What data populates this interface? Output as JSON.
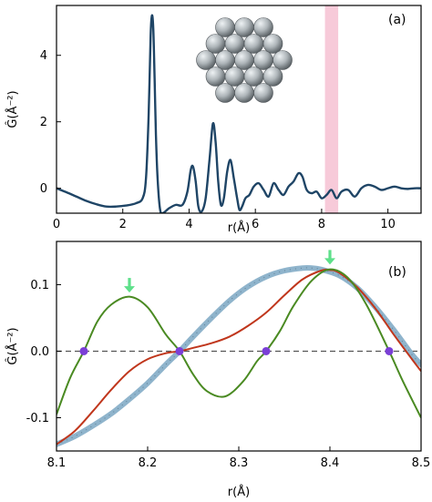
{
  "chart_data": [
    {
      "panel_label": "(a)",
      "type": "line",
      "xlabel": "r(Å)",
      "ylabel": "Ĝ(Å⁻²)",
      "xlim": [
        0,
        11
      ],
      "ylim": [
        -0.75,
        5.5
      ],
      "x_ticks": [
        "0",
        "2",
        "4",
        "6",
        "8",
        "10"
      ],
      "y_ticks": [
        "0",
        "2",
        "4"
      ],
      "highlight_band": {
        "x0": 8.1,
        "x1": 8.5,
        "color": "#f4b8cc"
      },
      "inset": "icosahedral nanoparticle rendering (gray spheres)",
      "series": [
        {
          "color": "#1f4566",
          "x": [
            0,
            0.3,
            0.6,
            0.9,
            1.2,
            1.5,
            1.8,
            2.1,
            2.4,
            2.6,
            2.7,
            2.78,
            2.84,
            2.88,
            2.92,
            2.96,
            3.0,
            3.05,
            3.12,
            3.2,
            3.4,
            3.6,
            3.8,
            3.95,
            4.05,
            4.12,
            4.2,
            4.28,
            4.38,
            4.5,
            4.62,
            4.72,
            4.8,
            4.88,
            4.96,
            5.05,
            5.15,
            5.25,
            5.35,
            5.45,
            5.52,
            5.6,
            5.7,
            5.82,
            5.95,
            6.1,
            6.25,
            6.4,
            6.55,
            6.7,
            6.85,
            7.0,
            7.15,
            7.3,
            7.42,
            7.55,
            7.7,
            7.85,
            8.0,
            8.15,
            8.3,
            8.45,
            8.6,
            8.8,
            9.0,
            9.2,
            9.4,
            9.6,
            9.8,
            10.0,
            10.2,
            10.4,
            10.6,
            10.8,
            11.0
          ],
          "values": [
            0.0,
            -0.12,
            -0.25,
            -0.38,
            -0.48,
            -0.55,
            -0.55,
            -0.52,
            -0.45,
            -0.3,
            0.3,
            2.2,
            4.6,
            5.2,
            4.8,
            3.3,
            1.6,
            0.3,
            -0.6,
            -0.75,
            -0.6,
            -0.5,
            -0.5,
            -0.1,
            0.55,
            0.65,
            0.2,
            -0.55,
            -0.7,
            -0.3,
            0.9,
            1.95,
            1.4,
            0.2,
            -0.5,
            -0.3,
            0.5,
            0.85,
            0.3,
            -0.3,
            -0.65,
            -0.55,
            -0.3,
            -0.2,
            0.05,
            0.15,
            -0.05,
            -0.25,
            0.15,
            -0.05,
            -0.2,
            0.05,
            0.2,
            0.45,
            0.35,
            -0.05,
            -0.15,
            -0.1,
            -0.3,
            -0.2,
            -0.05,
            -0.3,
            -0.1,
            -0.05,
            -0.25,
            0.0,
            0.1,
            0.05,
            -0.05,
            0.0,
            0.05,
            0.0,
            -0.02,
            0.0,
            0.0
          ]
        }
      ]
    },
    {
      "panel_label": "(b)",
      "type": "line",
      "xlabel": "r(Å)",
      "ylabel": "Ĝ(Å⁻²)",
      "xlim": [
        8.1,
        8.5
      ],
      "ylim": [
        -0.15,
        0.165
      ],
      "x_ticks": [
        "8.1",
        "8.2",
        "8.3",
        "8.4",
        "8.5"
      ],
      "y_ticks": [
        "-0.1",
        "0.0",
        "0.1"
      ],
      "zero_line": 0.0,
      "series": [
        {
          "color": "#8fb4cc",
          "style": "thick",
          "x": [
            8.1,
            8.12,
            8.14,
            8.16,
            8.18,
            8.2,
            8.22,
            8.235,
            8.25,
            8.27,
            8.29,
            8.31,
            8.33,
            8.35,
            8.37,
            8.38,
            8.39,
            8.41,
            8.43,
            8.45,
            8.47,
            8.49,
            8.5
          ],
          "values": [
            -0.14,
            -0.128,
            -0.112,
            -0.094,
            -0.072,
            -0.048,
            -0.02,
            0.0,
            0.022,
            0.05,
            0.076,
            0.097,
            0.112,
            0.121,
            0.125,
            0.125,
            0.123,
            0.114,
            0.095,
            0.066,
            0.032,
            -0.005,
            -0.02
          ]
        },
        {
          "color": "#c0361c",
          "x": [
            8.1,
            8.12,
            8.14,
            8.16,
            8.18,
            8.2,
            8.22,
            8.235,
            8.25,
            8.27,
            8.29,
            8.31,
            8.33,
            8.35,
            8.37,
            8.39,
            8.4,
            8.41,
            8.43,
            8.45,
            8.47,
            8.49,
            8.5
          ],
          "values": [
            -0.14,
            -0.12,
            -0.09,
            -0.058,
            -0.03,
            -0.012,
            -0.003,
            0.0,
            0.005,
            0.012,
            0.022,
            0.038,
            0.058,
            0.084,
            0.108,
            0.121,
            0.122,
            0.118,
            0.096,
            0.064,
            0.025,
            -0.012,
            -0.03
          ]
        },
        {
          "color": "#4a8a22",
          "x": [
            8.1,
            8.115,
            8.13,
            8.145,
            8.16,
            8.18,
            8.2,
            8.22,
            8.235,
            8.25,
            8.265,
            8.285,
            8.305,
            8.32,
            8.33,
            8.345,
            8.36,
            8.38,
            8.4,
            8.42,
            8.44,
            8.465,
            8.48,
            8.5
          ],
          "values": [
            -0.095,
            -0.04,
            0.0,
            0.045,
            0.07,
            0.082,
            0.066,
            0.025,
            0.0,
            -0.035,
            -0.06,
            -0.068,
            -0.045,
            -0.015,
            0.0,
            0.03,
            0.068,
            0.106,
            0.123,
            0.11,
            0.07,
            0.0,
            -0.045,
            -0.1
          ]
        }
      ],
      "zero_markers": {
        "color": "#7b3fd6",
        "x": [
          8.13,
          8.235,
          8.33,
          8.465
        ]
      },
      "arrows": {
        "color": "#5ee08a",
        "x": [
          8.18,
          8.4
        ],
        "y": [
          0.08,
          0.122
        ]
      }
    }
  ]
}
